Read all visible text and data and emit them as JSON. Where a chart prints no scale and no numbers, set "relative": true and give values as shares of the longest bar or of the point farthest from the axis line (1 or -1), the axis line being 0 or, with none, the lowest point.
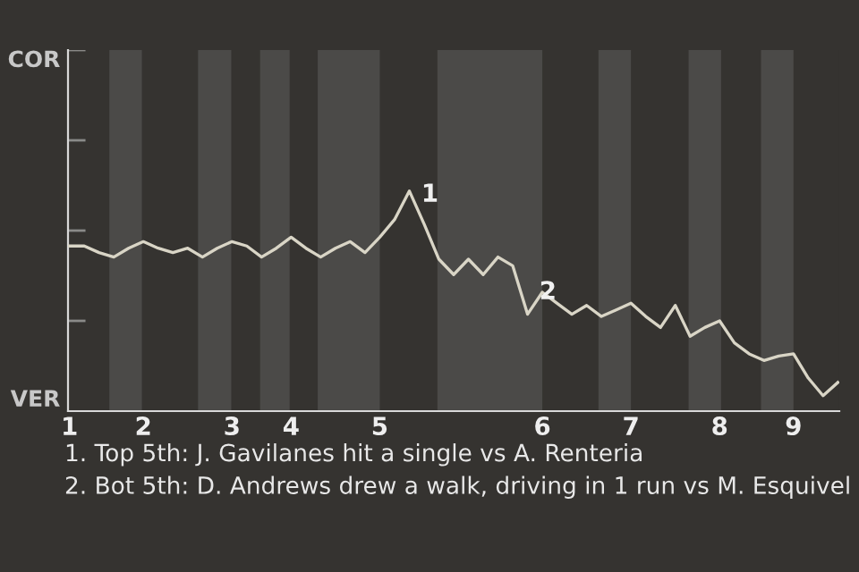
{
  "chart_data": {
    "type": "line",
    "relative": true,
    "categories": [
      "1",
      null,
      null,
      null,
      null,
      "2",
      null,
      null,
      null,
      null,
      null,
      "3",
      null,
      null,
      null,
      "4",
      null,
      null,
      null,
      null,
      null,
      "5",
      null,
      null,
      null,
      null,
      null,
      null,
      null,
      null,
      null,
      null,
      "6",
      null,
      null,
      null,
      null,
      null,
      "7",
      null,
      null,
      null,
      null,
      null,
      "8",
      null,
      null,
      null,
      null,
      "9",
      null,
      null,
      null
    ],
    "series": [
      {
        "color": "#d9d5c6",
        "values": [
          0.75,
          0.75,
          0.72,
          0.7,
          0.74,
          0.77,
          0.74,
          0.72,
          0.74,
          0.7,
          0.74,
          0.77,
          0.75,
          0.7,
          0.74,
          0.79,
          0.74,
          0.7,
          0.74,
          0.77,
          0.72,
          0.79,
          0.87,
          1,
          0.85,
          0.69,
          0.62,
          0.69,
          0.62,
          0.7,
          0.66,
          0.44,
          0.54,
          0.49,
          0.44,
          0.48,
          0.43,
          0.46,
          0.49,
          0.43,
          0.38,
          0.48,
          0.34,
          0.38,
          0.41,
          0.31,
          0.26,
          0.23,
          0.25,
          0.26,
          0.15,
          0.07,
          0.13
        ]
      }
    ],
    "marker": "none",
    "line_style": "solid",
    "annotations": [
      "COR",
      "VER",
      "1",
      "2",
      "1. Top 5th: J. Gavilanes hit a single vs A. Renteria",
      "2. Bot 5th: D. Andrews drew a walk, driving in 1 run vs M. Esquivel"
    ]
  }
}
